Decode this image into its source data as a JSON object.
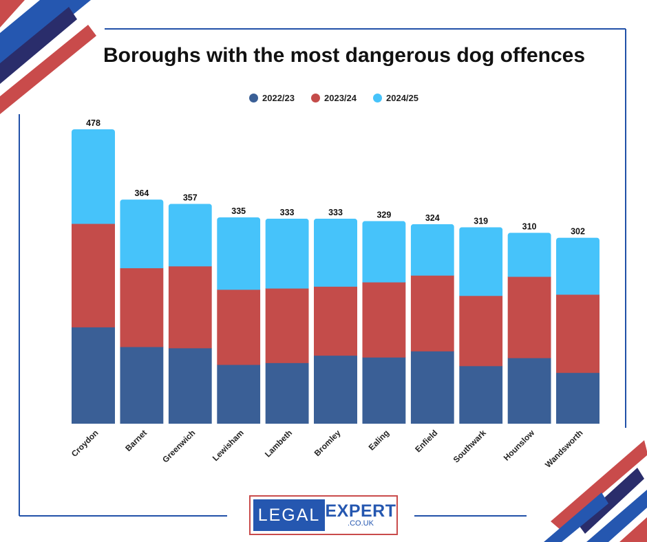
{
  "title": "Boroughs with the most dangerous dog offences",
  "legend": [
    {
      "label": "2022/23",
      "color": "#3a5f96"
    },
    {
      "label": "2023/24",
      "color": "#c44c4a"
    },
    {
      "label": "2024/25",
      "color": "#46c3fa"
    }
  ],
  "logo": {
    "left_word": "LEGAL",
    "right_word": "EXPERT",
    "domain": ".CO.UK"
  },
  "colors": {
    "navy": "#2a2d6b",
    "blue": "#2557b0",
    "red": "#c94b4b",
    "frame": "#2050a8"
  },
  "chart_data": {
    "type": "bar",
    "stacked": true,
    "title": "Boroughs with the most dangerous dog offences",
    "categories": [
      "Croydon",
      "Barnet",
      "Greenwich",
      "Lewisham",
      "Lambeth",
      "Bromley",
      "Ealing",
      "Enfield",
      "Southwark",
      "Hounslow",
      "Wandsworth"
    ],
    "series": [
      {
        "name": "2022/23",
        "values": [
          157,
          125,
          123,
          96,
          99,
          111,
          108,
          118,
          94,
          107,
          83
        ]
      },
      {
        "name": "2023/24",
        "values": [
          168,
          128,
          133,
          122,
          121,
          112,
          122,
          123,
          114,
          132,
          127
        ]
      },
      {
        "name": "2024/25",
        "values": [
          153,
          111,
          101,
          117,
          113,
          110,
          99,
          83,
          111,
          71,
          92
        ]
      }
    ],
    "totals": [
      478,
      364,
      357,
      335,
      333,
      333,
      329,
      324,
      319,
      310,
      302
    ],
    "ylim": [
      0,
      478
    ],
    "grid": false,
    "legend_position": "top-center"
  }
}
